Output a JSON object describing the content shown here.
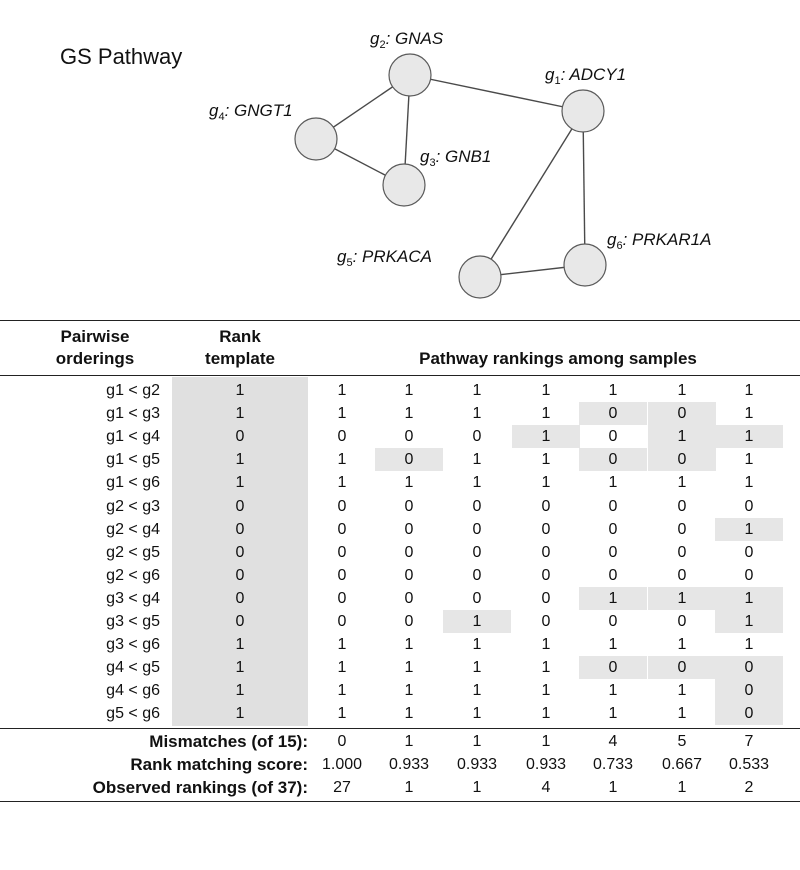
{
  "pathway": {
    "title": "GS Pathway",
    "nodes": [
      {
        "id": "g2",
        "sym": "g",
        "sub": "2",
        "name": ": GNAS"
      },
      {
        "id": "g1",
        "sym": "g",
        "sub": "1",
        "name": ": ADCY1"
      },
      {
        "id": "g4",
        "sym": "g",
        "sub": "4",
        "name": ": GNGT1"
      },
      {
        "id": "g3",
        "sym": "g",
        "sub": "3",
        "name": ": GNB1"
      },
      {
        "id": "g5",
        "sym": "g",
        "sub": "5",
        "name": ": PRKACA"
      },
      {
        "id": "g6",
        "sym": "g",
        "sub": "6",
        "name": ": PRKAR1A"
      }
    ],
    "edges": [
      [
        "g2",
        "g1"
      ],
      [
        "g2",
        "g4"
      ],
      [
        "g2",
        "g3"
      ],
      [
        "g4",
        "g3"
      ],
      [
        "g1",
        "g5"
      ],
      [
        "g1",
        "g6"
      ],
      [
        "g5",
        "g6"
      ]
    ]
  },
  "table": {
    "header_pairwise": [
      "Pairwise",
      "orderings"
    ],
    "header_template": [
      "Rank",
      "template"
    ],
    "header_samples": "Pathway rankings among samples",
    "rows": [
      {
        "label": "g1 < g2",
        "template": "1",
        "values": [
          "1",
          "1",
          "1",
          "1",
          "1",
          "1",
          "1"
        ],
        "shaded": [
          false,
          false,
          false,
          false,
          false,
          false,
          false
        ]
      },
      {
        "label": "g1 < g3",
        "template": "1",
        "values": [
          "1",
          "1",
          "1",
          "1",
          "0",
          "0",
          "1"
        ],
        "shaded": [
          false,
          false,
          false,
          false,
          true,
          true,
          false
        ]
      },
      {
        "label": "g1 < g4",
        "template": "0",
        "values": [
          "0",
          "0",
          "0",
          "1",
          "0",
          "1",
          "1"
        ],
        "shaded": [
          false,
          false,
          false,
          true,
          false,
          true,
          true
        ]
      },
      {
        "label": "g1 < g5",
        "template": "1",
        "values": [
          "1",
          "0",
          "1",
          "1",
          "0",
          "0",
          "1"
        ],
        "shaded": [
          false,
          true,
          false,
          false,
          true,
          true,
          false
        ]
      },
      {
        "label": "g1 < g6",
        "template": "1",
        "values": [
          "1",
          "1",
          "1",
          "1",
          "1",
          "1",
          "1"
        ],
        "shaded": [
          false,
          false,
          false,
          false,
          false,
          false,
          false
        ]
      },
      {
        "label": "g2 < g3",
        "template": "0",
        "values": [
          "0",
          "0",
          "0",
          "0",
          "0",
          "0",
          "0"
        ],
        "shaded": [
          false,
          false,
          false,
          false,
          false,
          false,
          false
        ]
      },
      {
        "label": "g2 < g4",
        "template": "0",
        "values": [
          "0",
          "0",
          "0",
          "0",
          "0",
          "0",
          "1"
        ],
        "shaded": [
          false,
          false,
          false,
          false,
          false,
          false,
          true
        ]
      },
      {
        "label": "g2 < g5",
        "template": "0",
        "values": [
          "0",
          "0",
          "0",
          "0",
          "0",
          "0",
          "0"
        ],
        "shaded": [
          false,
          false,
          false,
          false,
          false,
          false,
          false
        ]
      },
      {
        "label": "g2 < g6",
        "template": "0",
        "values": [
          "0",
          "0",
          "0",
          "0",
          "0",
          "0",
          "0"
        ],
        "shaded": [
          false,
          false,
          false,
          false,
          false,
          false,
          false
        ]
      },
      {
        "label": "g3 < g4",
        "template": "0",
        "values": [
          "0",
          "0",
          "0",
          "0",
          "1",
          "1",
          "1"
        ],
        "shaded": [
          false,
          false,
          false,
          false,
          true,
          true,
          true
        ]
      },
      {
        "label": "g3 < g5",
        "template": "0",
        "values": [
          "0",
          "0",
          "1",
          "0",
          "0",
          "0",
          "1"
        ],
        "shaded": [
          false,
          false,
          true,
          false,
          false,
          false,
          true
        ]
      },
      {
        "label": "g3 < g6",
        "template": "1",
        "values": [
          "1",
          "1",
          "1",
          "1",
          "1",
          "1",
          "1"
        ],
        "shaded": [
          false,
          false,
          false,
          false,
          false,
          false,
          false
        ]
      },
      {
        "label": "g4 < g5",
        "template": "1",
        "values": [
          "1",
          "1",
          "1",
          "1",
          "0",
          "0",
          "0"
        ],
        "shaded": [
          false,
          false,
          false,
          false,
          true,
          true,
          true
        ]
      },
      {
        "label": "g4 < g6",
        "template": "1",
        "values": [
          "1",
          "1",
          "1",
          "1",
          "1",
          "1",
          "0"
        ],
        "shaded": [
          false,
          false,
          false,
          false,
          false,
          false,
          true
        ]
      },
      {
        "label": "g5 < g6",
        "template": "1",
        "values": [
          "1",
          "1",
          "1",
          "1",
          "1",
          "1",
          "0"
        ],
        "shaded": [
          false,
          false,
          false,
          false,
          false,
          false,
          true
        ]
      }
    ],
    "footer": [
      {
        "label": "Mismatches (of 15):",
        "values": [
          "0",
          "1",
          "1",
          "1",
          "4",
          "5",
          "7"
        ]
      },
      {
        "label": "Rank matching score:",
        "values": [
          "1.000",
          "0.933",
          "0.933",
          "0.933",
          "0.733",
          "0.667",
          "0.533"
        ]
      },
      {
        "label": "Observed rankings (of 37):",
        "values": [
          "27",
          "1",
          "1",
          "4",
          "1",
          "1",
          "2"
        ]
      }
    ]
  },
  "colors": {
    "shade": "#e6e6e6",
    "template_shade": "#e0e0e0",
    "node_fill": "#e8e8e8"
  }
}
